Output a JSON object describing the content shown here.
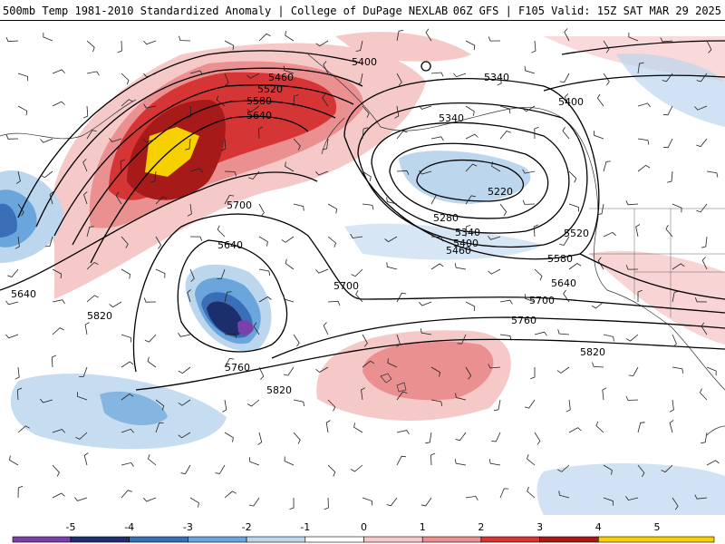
{
  "header": {
    "title": "500mb Temp 1981-2010 Standardized Anomaly | College of DuPage NEXLAB",
    "run_info": "06Z GFS | F105 Valid: 15Z SAT MAR 29 2025"
  },
  "map": {
    "contour_labels": [
      "5400",
      "5460",
      "5520",
      "5580",
      "5640",
      "5700",
      "5640",
      "5640",
      "5820",
      "5760",
      "5820",
      "5700",
      "5340",
      "5340",
      "5400",
      "5220",
      "5280",
      "5340",
      "5400",
      "5460",
      "5520",
      "5580",
      "5640",
      "5700",
      "5760",
      "5820"
    ]
  },
  "legend": {
    "tick_labels": [
      "-5",
      "-4",
      "-3",
      "-2",
      "-1",
      "0",
      "1",
      "2",
      "3",
      "4",
      "5"
    ],
    "colors": [
      "#7b3fa8",
      "#1c2e6b",
      "#3a6fb8",
      "#6aa5db",
      "#bcd6ee",
      "#ffffff",
      "#f6c9c9",
      "#eb9090",
      "#d63535",
      "#a61a1a",
      "#f7d000"
    ]
  }
}
